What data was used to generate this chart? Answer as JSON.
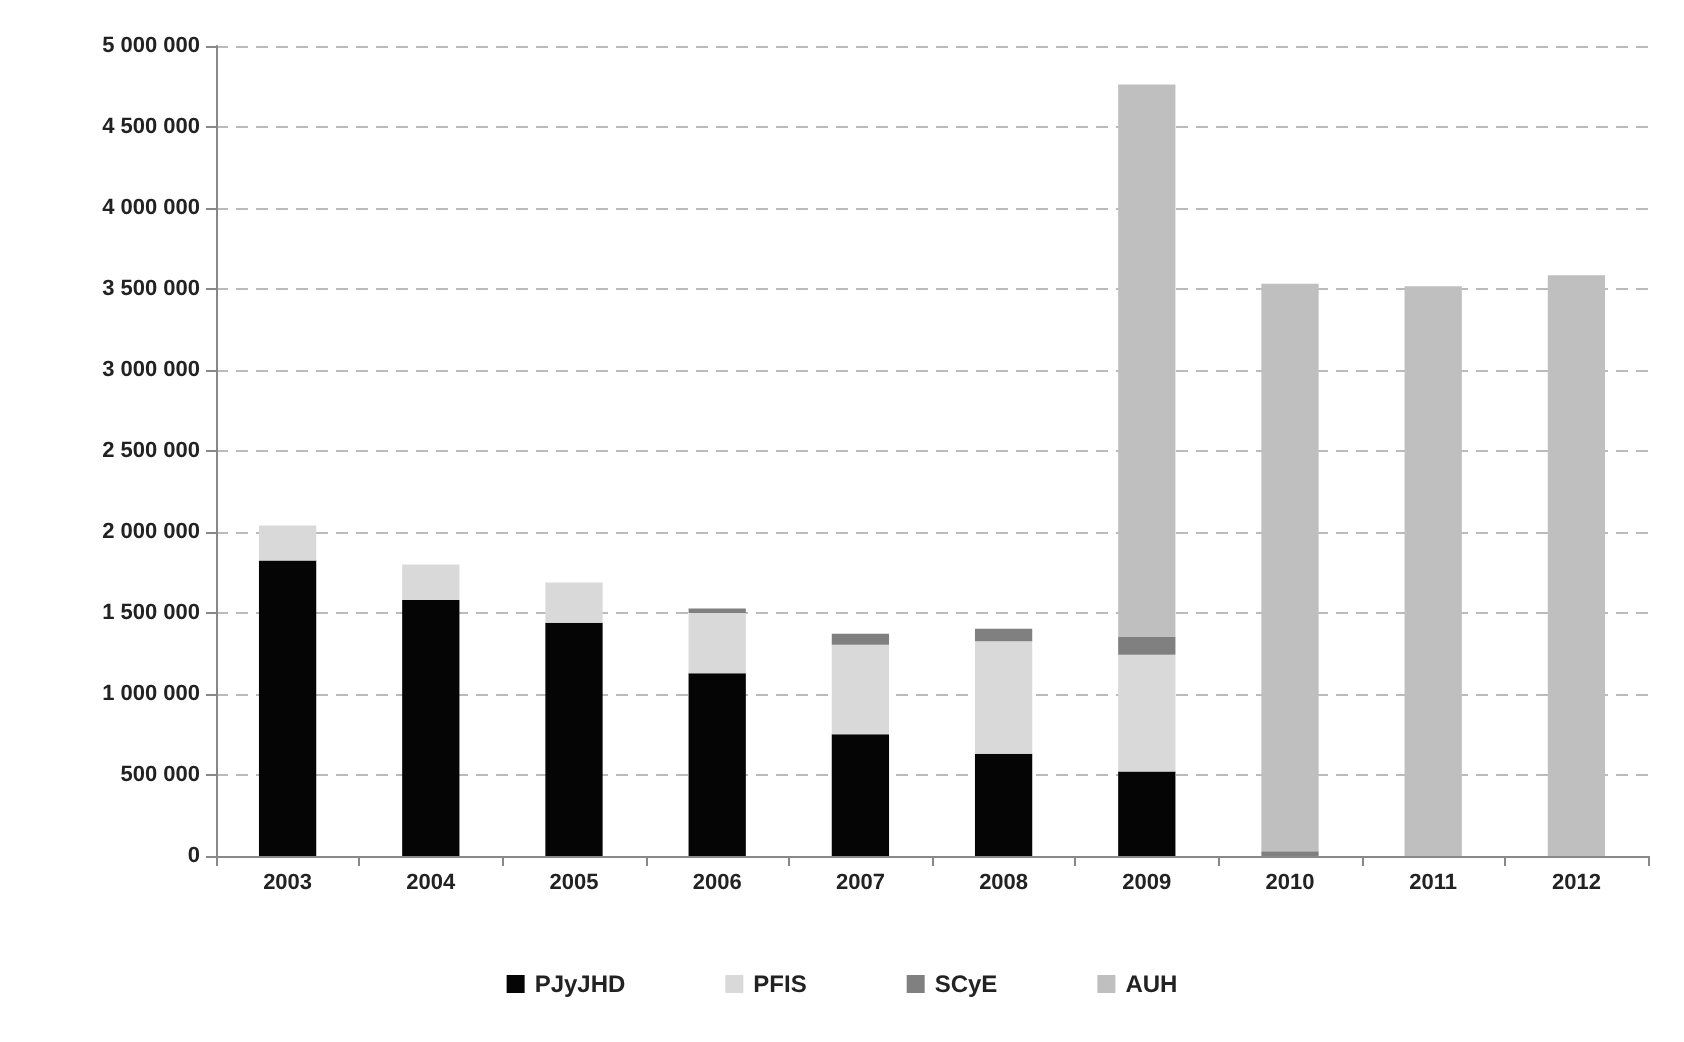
{
  "chart_data": {
    "type": "bar",
    "stacked": true,
    "categories": [
      "2003",
      "2004",
      "2005",
      "2006",
      "2007",
      "2008",
      "2009",
      "2010",
      "2011",
      "2012"
    ],
    "series": [
      {
        "name": "PJyJHD",
        "color": "#050505",
        "values": [
          1824000,
          1580000,
          1440000,
          1128000,
          752000,
          631000,
          522000,
          null,
          null,
          null
        ]
      },
      {
        "name": "PFIS",
        "color": "#d9d9d9",
        "values": [
          216000,
          220000,
          248000,
          372000,
          552000,
          695000,
          720000,
          null,
          null,
          null
        ]
      },
      {
        "name": "SCyE",
        "color": "#808080",
        "values": [
          null,
          null,
          null,
          28000,
          68000,
          77000,
          113000,
          30000,
          null,
          null
        ]
      },
      {
        "name": "AUH",
        "color": "#bfbfbf",
        "values": [
          null,
          null,
          null,
          null,
          null,
          null,
          3408000,
          3503000,
          3517000,
          3585000
        ]
      }
    ],
    "ylim": [
      0,
      5000000
    ],
    "yticks": [
      0,
      {
        "value": 500000,
        "label": "500 000"
      },
      {
        "value": 1000000,
        "label": "1 000 000"
      },
      {
        "value": 1500000,
        "label": "1 500 000"
      },
      {
        "value": 2000000,
        "label": "2 000 000"
      },
      {
        "value": 2500000,
        "label": "2 500 000"
      },
      {
        "value": 3000000,
        "label": "3 000 000"
      },
      {
        "value": 3500000,
        "label": "3 500 000"
      },
      {
        "value": 4000000,
        "label": "4 000 000"
      },
      {
        "value": 4500000,
        "label": "4 500 000"
      },
      {
        "value": 5000000,
        "label": "5 000 000"
      }
    ],
    "grid": "y",
    "legend": "bottom"
  }
}
